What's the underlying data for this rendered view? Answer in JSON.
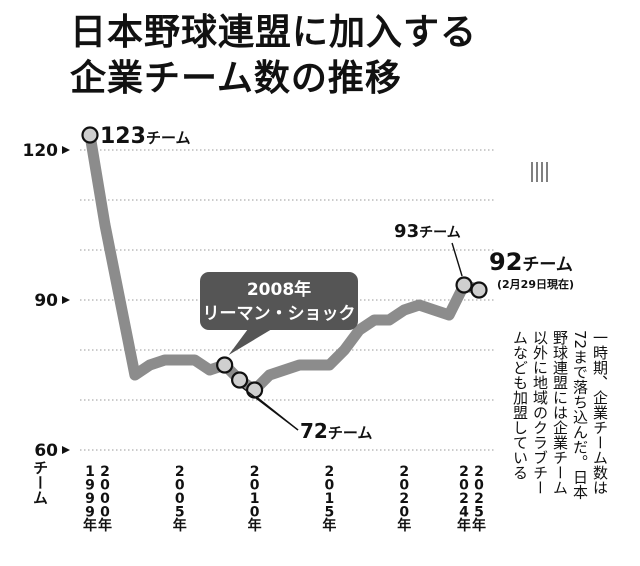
{
  "title": {
    "line1": "日本野球連盟に加入する",
    "line2": "企業チーム数の推移"
  },
  "chart_data": {
    "type": "line",
    "title": "日本野球連盟に加入する企業チーム数の推移",
    "unit": "チーム",
    "ylim": [
      60,
      125
    ],
    "yticks": [
      60,
      90,
      120
    ],
    "grid": true,
    "xlim": [
      1999,
      2025.4
    ],
    "xticks": [
      {
        "year": 1999,
        "label": "1999年"
      },
      {
        "year": 2000,
        "label": "2000年"
      },
      {
        "year": 2005,
        "label": "2005年"
      },
      {
        "year": 2010,
        "label": "2010年"
      },
      {
        "year": 2015,
        "label": "2015年"
      },
      {
        "year": 2020,
        "label": "2020年"
      },
      {
        "year": 2024,
        "label": "2024年"
      },
      {
        "year": 2025,
        "label": "2025年"
      }
    ],
    "series": [
      {
        "points": [
          [
            1999,
            123
          ],
          [
            2000,
            105
          ],
          [
            2002,
            75
          ],
          [
            2003,
            77
          ],
          [
            2004,
            78
          ],
          [
            2005,
            78
          ],
          [
            2006,
            78
          ],
          [
            2007,
            76
          ],
          [
            2008,
            77
          ],
          [
            2009,
            74
          ],
          [
            2010,
            72
          ],
          [
            2011,
            75
          ],
          [
            2012,
            76
          ],
          [
            2013,
            77
          ],
          [
            2014,
            77
          ],
          [
            2015,
            77
          ],
          [
            2016,
            80
          ],
          [
            2017,
            84
          ],
          [
            2018,
            86
          ],
          [
            2019,
            86
          ],
          [
            2020,
            88
          ],
          [
            2021,
            89
          ],
          [
            2022,
            88
          ],
          [
            2023,
            87
          ],
          [
            2024,
            93
          ],
          [
            2025,
            92
          ]
        ]
      }
    ],
    "marked_points": [
      {
        "year": 1999,
        "value": 123,
        "label": "123チーム"
      },
      {
        "year": 2008,
        "value": 77
      },
      {
        "year": 2009,
        "value": 74
      },
      {
        "year": 2010,
        "value": 72
      },
      {
        "year": 2024,
        "value": 93,
        "label": "93チーム"
      },
      {
        "year": 2025,
        "value": 92,
        "label": "92チーム",
        "sublabel": "(2月29日現在)"
      }
    ],
    "annotations": [
      {
        "label": "72チーム"
      },
      {
        "line1": "2008年",
        "line2": "リーマン・ショック"
      }
    ],
    "colors": {
      "line": "#8c8c8c",
      "marker_fill": "#cfcfcf",
      "callout_bg": "#555555",
      "callout_text": "#ffffff",
      "grid": "#9a9a9a"
    }
  },
  "side_note": "一時期、企業チーム数は72まで落ち込んだ。日本野球連盟には企業チーム以外に地域のクラブチームなども加盟している"
}
